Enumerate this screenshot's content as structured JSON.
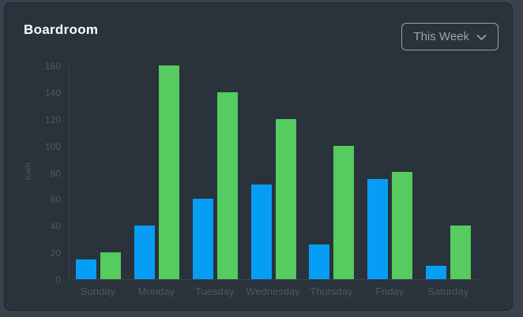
{
  "card": {
    "title": "Boardroom",
    "period_selector": {
      "label": "This Week",
      "icon": "chevron-down-icon"
    }
  },
  "colors": {
    "page_bg": "#3a424d",
    "card_bg": "#2a323b",
    "card_border": "#20262e",
    "title_text": "#ffffff",
    "selector_text": "#9aa4ae",
    "selector_border": "#97a1aa",
    "axis_text": "#4f5962",
    "axis_line": "#39424b",
    "series_blue": "#069ef5",
    "series_green": "#55cb60"
  },
  "chart_data": {
    "type": "bar",
    "title": "Boardroom",
    "categories": [
      "Sunday",
      "Monday",
      "Tuesday",
      "Wednesday",
      "Thursday",
      "Friday",
      "Saturday"
    ],
    "series": [
      {
        "name": "blue",
        "color": "#069ef5",
        "values": [
          15,
          40,
          60,
          71,
          26,
          75,
          10
        ]
      },
      {
        "name": "green",
        "color": "#55cb60",
        "values": [
          20,
          160,
          140,
          120,
          100,
          80,
          40
        ]
      }
    ],
    "xlabel": "",
    "ylabel": "Kwh",
    "ylim": [
      0,
      160
    ],
    "ytick_step": 20,
    "grid": false,
    "legend": "none"
  }
}
